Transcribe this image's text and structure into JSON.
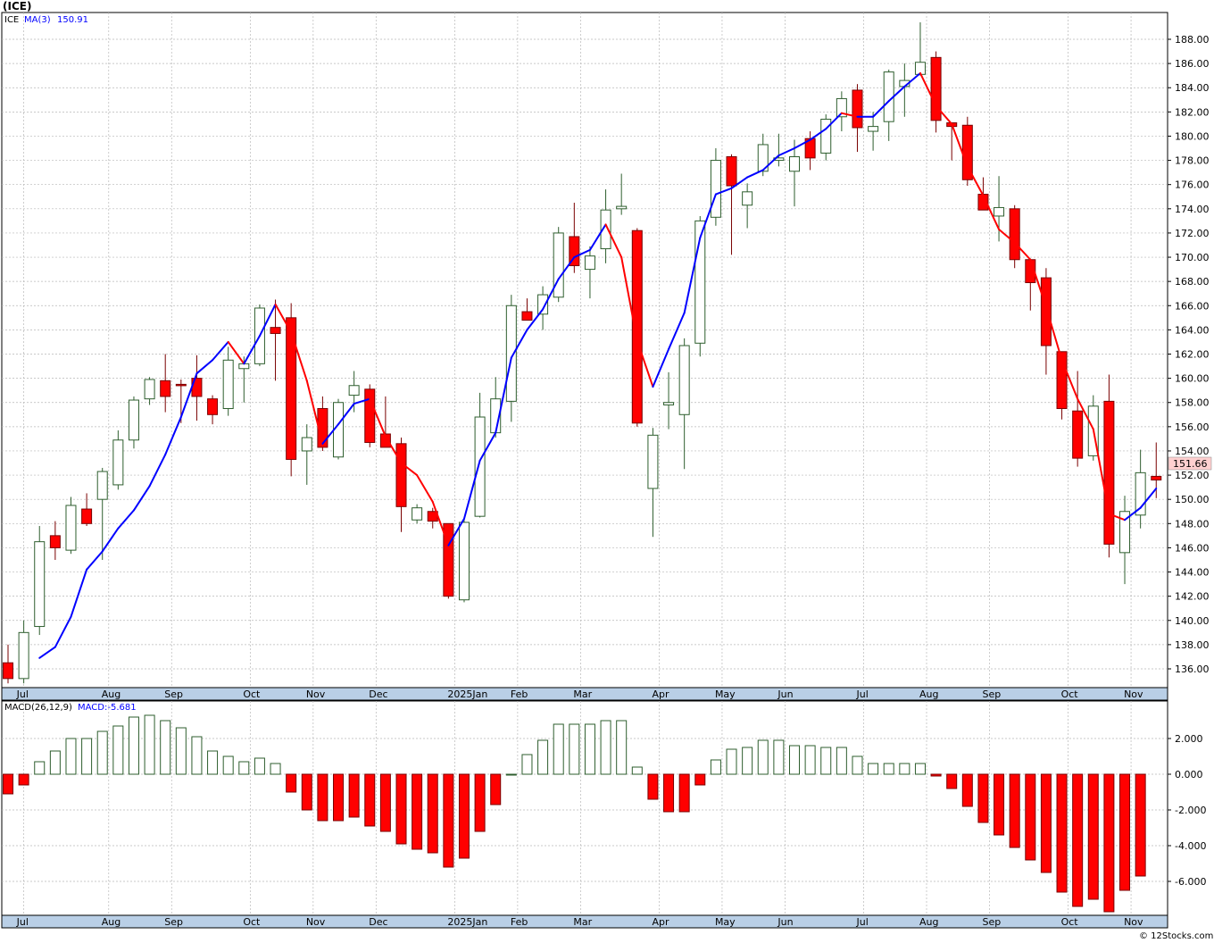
{
  "title": "(ICE)",
  "credit": "© 12Stocks.com",
  "colors": {
    "up": "#ffffff",
    "up_edge": "#2e5e2e",
    "down": "#ff0000",
    "down_edge": "#7a0000",
    "ma_up": "#0000ff",
    "ma_down": "#ff0000",
    "axis_band": "#b9cfe6",
    "grid": "#b8b8b8",
    "last_price_box": "#ffd0d0",
    "macd_pos": "#ffffff",
    "macd_neg": "#ff0000"
  },
  "price_panel": {
    "legend": {
      "symbol": "ICE",
      "ma_label": "MA(3)",
      "ma_value": "150.91"
    },
    "last_price_label": "151.66",
    "yticks": [
      "136.00",
      "138.00",
      "140.00",
      "142.00",
      "144.00",
      "146.00",
      "148.00",
      "150.00",
      "152.00",
      "154.00",
      "156.00",
      "158.00",
      "160.00",
      "162.00",
      "164.00",
      "166.00",
      "168.00",
      "170.00",
      "172.00",
      "174.00",
      "176.00",
      "178.00",
      "180.00",
      "182.00",
      "184.00",
      "186.00",
      "188.00"
    ]
  },
  "macd_panel": {
    "legend": {
      "label": "MACD(26,12,9)",
      "value_label": "MACD:-5.681"
    },
    "yticks": [
      "-6.000",
      "-4.000",
      "-2.000",
      "0.000",
      "2.000"
    ]
  },
  "x_axis_labels": [
    {
      "label": "Jul",
      "w": 1.0
    },
    {
      "label": "Aug",
      "w": 6.4
    },
    {
      "label": "Sep",
      "w": 10.4
    },
    {
      "label": "Oct",
      "w": 15.4
    },
    {
      "label": "Nov",
      "w": 19.4
    },
    {
      "label": "Dec",
      "w": 23.4
    },
    {
      "label": "2025Jan",
      "w": 28.4
    },
    {
      "label": "Feb",
      "w": 32.4
    },
    {
      "label": "Mar",
      "w": 36.4
    },
    {
      "label": "Apr",
      "w": 41.4
    },
    {
      "label": "May",
      "w": 45.4
    },
    {
      "label": "Jun",
      "w": 49.4
    },
    {
      "label": "Jul",
      "w": 54.4
    },
    {
      "label": "Aug",
      "w": 58.4
    },
    {
      "label": "Sep",
      "w": 62.4
    },
    {
      "label": "Oct",
      "w": 67.4
    },
    {
      "label": "Nov",
      "w": 71.4
    }
  ],
  "chart_data": [
    {
      "type": "candlestick",
      "title": "(ICE)",
      "ylim": [
        134.8,
        189.6
      ],
      "grid": true,
      "series_name": "ICE",
      "ohlc": [
        [
          136.5,
          138.0,
          134.8,
          135.2
        ],
        [
          135.2,
          140.0,
          134.8,
          139.0
        ],
        [
          139.5,
          147.8,
          138.8,
          146.5
        ],
        [
          147.0,
          148.2,
          145.0,
          146.0
        ],
        [
          145.8,
          150.2,
          145.5,
          149.5
        ],
        [
          149.2,
          150.5,
          147.8,
          148.0
        ],
        [
          150.0,
          152.6,
          145.0,
          152.3
        ],
        [
          151.2,
          155.7,
          150.8,
          154.9
        ],
        [
          154.9,
          158.5,
          154.2,
          158.2
        ],
        [
          158.3,
          160.1,
          157.8,
          159.9
        ],
        [
          159.8,
          162.0,
          157.2,
          158.5
        ],
        [
          159.5,
          159.9,
          156.3,
          159.4
        ],
        [
          160.0,
          161.9,
          156.5,
          158.5
        ],
        [
          158.3,
          158.6,
          156.2,
          157.0
        ],
        [
          157.5,
          162.6,
          156.9,
          161.5
        ],
        [
          160.8,
          161.8,
          158.0,
          161.2
        ],
        [
          161.2,
          166.1,
          161.0,
          165.8
        ],
        [
          164.2,
          166.5,
          159.8,
          163.7
        ],
        [
          165.0,
          166.2,
          151.9,
          153.3
        ],
        [
          154.0,
          156.2,
          151.2,
          155.1
        ],
        [
          157.5,
          158.5,
          154.0,
          154.3
        ],
        [
          153.5,
          158.3,
          153.3,
          158.0
        ],
        [
          158.6,
          160.6,
          157.2,
          159.4
        ],
        [
          159.1,
          159.5,
          154.3,
          154.7
        ],
        [
          155.4,
          158.5,
          154.3,
          154.3
        ],
        [
          154.6,
          155.1,
          147.3,
          149.4
        ],
        [
          148.3,
          149.6,
          148.0,
          149.3
        ],
        [
          149.0,
          149.3,
          147.6,
          148.2
        ],
        [
          148.0,
          148.0,
          141.8,
          142.0
        ],
        [
          141.7,
          148.4,
          141.5,
          148.1
        ],
        [
          148.6,
          158.8,
          148.5,
          156.8
        ],
        [
          155.5,
          160.1,
          155.1,
          158.3
        ],
        [
          158.1,
          166.9,
          156.4,
          166.0
        ],
        [
          165.5,
          166.6,
          164.9,
          164.8
        ],
        [
          165.3,
          167.6,
          164.0,
          166.9
        ],
        [
          166.7,
          172.5,
          166.3,
          172.0
        ],
        [
          171.7,
          174.5,
          168.7,
          169.3
        ],
        [
          169.0,
          170.9,
          166.6,
          170.1
        ],
        [
          170.7,
          175.6,
          169.5,
          173.9
        ],
        [
          174.0,
          176.9,
          173.5,
          174.2
        ],
        [
          172.2,
          172.4,
          156.0,
          156.3
        ],
        [
          150.9,
          155.9,
          146.9,
          155.3
        ],
        [
          157.8,
          160.5,
          155.8,
          158.0
        ],
        [
          157.0,
          163.3,
          152.5,
          162.7
        ],
        [
          162.9,
          173.4,
          161.8,
          173.0
        ],
        [
          173.3,
          179.0,
          172.6,
          178.0
        ],
        [
          178.3,
          178.5,
          170.2,
          175.9
        ],
        [
          174.3,
          176.1,
          172.4,
          175.4
        ],
        [
          177.1,
          180.2,
          176.7,
          179.3
        ],
        [
          178.0,
          180.2,
          177.5,
          178.2
        ],
        [
          177.1,
          179.7,
          174.2,
          178.3
        ],
        [
          179.8,
          180.4,
          177.2,
          178.2
        ],
        [
          178.6,
          181.8,
          178.0,
          181.4
        ],
        [
          181.6,
          183.7,
          180.4,
          183.1
        ],
        [
          183.8,
          184.3,
          178.7,
          180.7
        ],
        [
          180.4,
          182.0,
          178.8,
          180.8
        ],
        [
          181.2,
          185.5,
          179.6,
          185.3
        ],
        [
          184.1,
          186.0,
          181.6,
          184.6
        ],
        [
          185.1,
          189.4,
          185.0,
          186.1
        ],
        [
          186.5,
          187.0,
          180.3,
          181.3
        ],
        [
          181.1,
          181.1,
          178.0,
          180.8
        ],
        [
          180.9,
          181.6,
          175.9,
          176.4
        ],
        [
          175.2,
          176.6,
          174.2,
          173.9
        ],
        [
          173.4,
          176.7,
          171.3,
          174.1
        ],
        [
          174.0,
          174.3,
          169.1,
          169.8
        ],
        [
          169.8,
          169.9,
          165.6,
          167.9
        ],
        [
          168.3,
          169.1,
          160.3,
          162.7
        ],
        [
          162.2,
          162.2,
          156.6,
          157.5
        ],
        [
          157.3,
          160.6,
          152.7,
          153.4
        ],
        [
          153.6,
          158.6,
          153.2,
          157.7
        ],
        [
          158.1,
          160.3,
          145.2,
          146.3
        ],
        [
          145.6,
          150.3,
          143.0,
          149.0
        ],
        [
          148.7,
          154.1,
          147.6,
          152.2
        ],
        [
          151.9,
          154.7,
          150.1,
          151.6
        ]
      ],
      "ma3": [
        null,
        null,
        136.9,
        137.8,
        140.3,
        144.2,
        145.7,
        147.6,
        149.1,
        151.1,
        153.7,
        156.8,
        160.4,
        161.5,
        163.0,
        161.2,
        163.5,
        166.1,
        163.8,
        159.8,
        154.6,
        156.2,
        157.9,
        158.3,
        155.2,
        153.0,
        152.0,
        149.8,
        146.2,
        148.4,
        153.2,
        155.5,
        161.7,
        164.0,
        165.7,
        168.2,
        170.0,
        170.6,
        172.7,
        170.0,
        163.1,
        159.3,
        162.4,
        165.4,
        171.6,
        175.2,
        175.7,
        176.6,
        177.2,
        178.4,
        179.0,
        179.7,
        180.6,
        181.9,
        181.6,
        181.6,
        182.9,
        184.1,
        185.2,
        182.5,
        181.0,
        177.5,
        175.1,
        172.3,
        171.2,
        169.8,
        165.9,
        161.5,
        158.3,
        155.8,
        148.8,
        148.3,
        149.3,
        150.9
      ]
    },
    {
      "type": "bar",
      "title": "MACD(26,12,9)",
      "series_name": "MACD",
      "ylim": [
        -7.8,
        3.6
      ],
      "values": [
        -1.1,
        -0.6,
        0.7,
        1.3,
        2.0,
        2.0,
        2.4,
        2.7,
        3.2,
        3.3,
        3.0,
        2.6,
        2.1,
        1.3,
        1.0,
        0.7,
        0.9,
        0.6,
        -1.0,
        -2.0,
        -2.6,
        -2.6,
        -2.4,
        -2.9,
        -3.2,
        -3.9,
        -4.2,
        -4.4,
        -5.2,
        -4.7,
        -3.2,
        -1.7,
        0.0,
        1.1,
        1.9,
        2.8,
        2.8,
        2.8,
        3.0,
        3.0,
        0.4,
        -1.4,
        -2.1,
        -2.1,
        -0.6,
        0.8,
        1.4,
        1.5,
        1.9,
        1.9,
        1.6,
        1.6,
        1.5,
        1.5,
        1.0,
        0.6,
        0.6,
        0.6,
        0.6,
        -0.1,
        -0.8,
        -1.8,
        -2.7,
        -3.4,
        -4.1,
        -4.8,
        -5.5,
        -6.6,
        -7.4,
        -7.0,
        -7.7,
        -6.5,
        -5.7
      ]
    }
  ]
}
